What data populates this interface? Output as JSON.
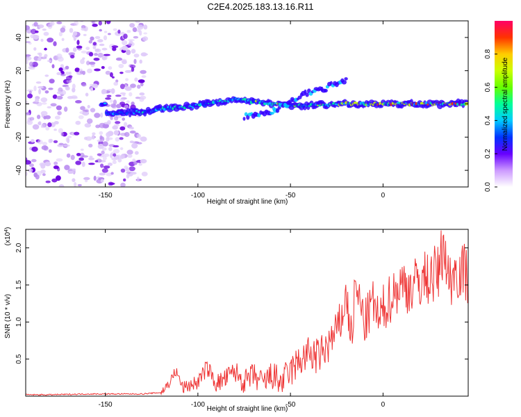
{
  "page": {
    "title": "C2E4.2025.183.13.16.R11"
  },
  "chart_data": [
    {
      "type": "heatmap",
      "xlabel": "Height of straight line (km)",
      "ylabel": "Frequency (Hz)",
      "xlim": [
        -193,
        46
      ],
      "ylim": [
        -50,
        50
      ],
      "xticks": [
        -150,
        -100,
        -50,
        0
      ],
      "xtick_labels": [
        "-150",
        "-100",
        "-50",
        "0"
      ],
      "yticks": [
        -40,
        -20,
        0,
        20,
        40
      ],
      "ytick_labels": [
        "-40",
        "-20",
        "0",
        "20",
        "40"
      ],
      "colorbar": {
        "label": "Normalized spectral amplitude",
        "range": [
          0.0,
          1.0
        ],
        "ticks": [
          0.0,
          0.2,
          0.4,
          0.6,
          0.8
        ],
        "tick_labels": [
          "0.0",
          "0.2",
          "0.4",
          "0.6",
          "0.8"
        ]
      },
      "noise_region_x": [
        -193,
        -128
      ],
      "main_band": [
        {
          "x": -150,
          "y": -6
        },
        {
          "x": -130,
          "y": -5
        },
        {
          "x": -120,
          "y": -3
        },
        {
          "x": -100,
          "y": -1
        },
        {
          "x": -80,
          "y": 3
        },
        {
          "x": -60,
          "y": 0
        },
        {
          "x": -40,
          "y": -1
        },
        {
          "x": -20,
          "y": 0
        },
        {
          "x": 0,
          "y": 0
        },
        {
          "x": 20,
          "y": 0
        },
        {
          "x": 46,
          "y": 0
        }
      ],
      "secondary_band": [
        {
          "x": -75,
          "y": -8
        },
        {
          "x": -60,
          "y": -5
        },
        {
          "x": -45,
          "y": 5
        },
        {
          "x": -30,
          "y": 10
        },
        {
          "x": -20,
          "y": 14
        }
      ],
      "grid": false
    },
    {
      "type": "line",
      "xlabel": "Height of straight line (km)",
      "ylabel": "SNR (10 * v/v)",
      "yscale_note": "(x10",
      "yscale_exp": "4",
      "yscale_close": ")",
      "xlim": [
        -193,
        46
      ],
      "ylim": [
        0,
        2.25
      ],
      "xticks": [
        -150,
        -100,
        -50,
        0
      ],
      "xtick_labels": [
        "-150",
        "-100",
        "-50",
        "0"
      ],
      "yticks": [
        0.5,
        1.0,
        1.5,
        2.0
      ],
      "ytick_labels": [
        "0.5",
        "1.0",
        "1.5",
        "2.0"
      ],
      "color": "#ee3333",
      "grid": false,
      "series": [
        {
          "x": [
            -193,
            -180,
            -160,
            -140,
            -130,
            -120,
            -115,
            -112,
            -108,
            -100,
            -95,
            -90,
            -85,
            -80,
            -75,
            -70,
            -65,
            -60,
            -55,
            -50,
            -45,
            -40,
            -35,
            -30,
            -25,
            -22,
            -20,
            -17,
            -15,
            -12,
            -10,
            -7,
            -5,
            -2,
            0,
            5,
            10,
            15,
            20,
            25,
            30,
            33,
            35,
            40,
            46
          ],
          "y": [
            0.02,
            0.02,
            0.03,
            0.03,
            0.03,
            0.05,
            0.2,
            0.35,
            0.12,
            0.2,
            0.4,
            0.18,
            0.25,
            0.35,
            0.2,
            0.3,
            0.18,
            0.3,
            0.2,
            0.35,
            0.5,
            0.6,
            0.55,
            0.7,
            0.9,
            1.1,
            1.4,
            0.8,
            1.5,
            1.25,
            1.0,
            1.2,
            1.3,
            1.0,
            1.2,
            1.4,
            1.55,
            1.5,
            1.6,
            1.65,
            1.7,
            2.15,
            1.6,
            1.75,
            1.7
          ]
        }
      ]
    }
  ]
}
